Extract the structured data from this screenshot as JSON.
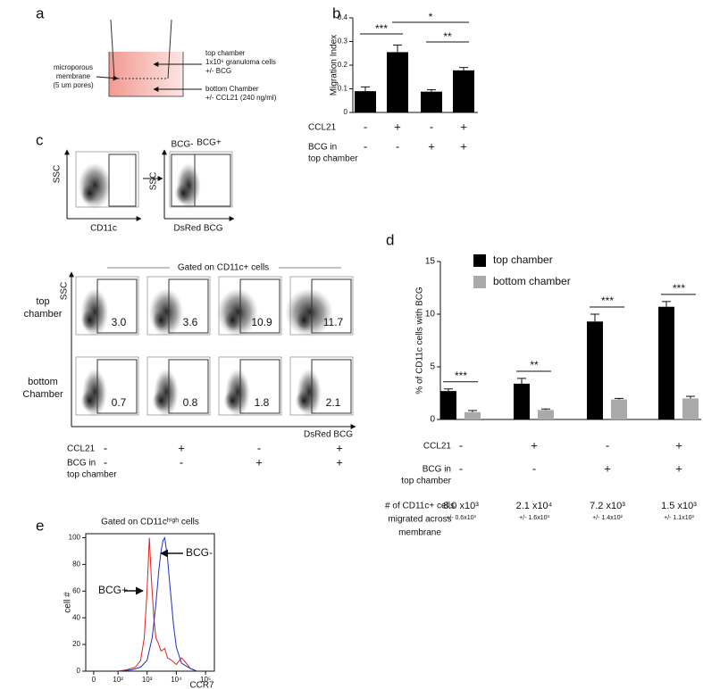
{
  "panels": {
    "a": {
      "letter": "a",
      "membrane": [
        "microporous",
        "membrane",
        "(5 um pores)"
      ],
      "top": [
        "top chamber",
        "1x10⁶ granuloma cells",
        "+/- BCG"
      ],
      "bottom": [
        "bottom Chamber",
        "+/- CCL21 (240 ng/ml)"
      ]
    },
    "c": {
      "letter": "c",
      "ssc": "SSC",
      "cd11c": "CD11c",
      "dsred": "DsRed BCG",
      "bcg_minus": "BCG-",
      "bcg_plus": "BCG+",
      "gated": "Gated on CD11c+ cells",
      "row_labels": [
        [
          "top",
          "chamber"
        ],
        [
          "bottom",
          "Chamber"
        ]
      ],
      "percentages": [
        [
          "3.0",
          "3.6",
          "10.9",
          "11.7"
        ],
        [
          "0.7",
          "0.8",
          "1.8",
          "2.1"
        ]
      ],
      "x_label": "DsRed BCG",
      "rows": [
        {
          "label": [
            "CCL21"
          ],
          "values": [
            "-",
            "+",
            "-",
            "+"
          ]
        },
        {
          "label": [
            "BCG in",
            "top chamber"
          ],
          "values": [
            "-",
            "-",
            "+",
            "+"
          ]
        }
      ]
    }
  },
  "chart_data": [
    {
      "type": "bar",
      "panel": "b",
      "y_label": "Migration Index",
      "color": "#000000",
      "values": [
        0.09,
        0.255,
        0.088,
        0.178
      ],
      "errors": [
        0.018,
        0.03,
        0.008,
        0.012
      ],
      "ylim": [
        0,
        0.4
      ],
      "yticks": [
        0,
        0.1,
        0.2,
        0.3,
        0.4
      ],
      "annotations": [
        "***",
        "*",
        "**"
      ],
      "rows": [
        {
          "label": [
            "CCL21"
          ],
          "values": [
            "-",
            "+",
            "-",
            "+"
          ]
        },
        {
          "label": [
            "BCG in",
            "top chamber"
          ],
          "values": [
            "-",
            "-",
            "+",
            "+"
          ]
        }
      ]
    },
    {
      "type": "grouped-bar",
      "panel": "d",
      "y_label": "% of CD11c cells with BCG",
      "series": [
        {
          "name": "top chamber",
          "color": "#000000",
          "values": [
            2.7,
            3.4,
            9.3,
            10.7
          ],
          "errors": [
            0.2,
            0.5,
            0.7,
            0.5
          ]
        },
        {
          "name": "bottom chamber",
          "color": "#aaaaaa",
          "values": [
            0.7,
            0.9,
            1.9,
            2.0
          ],
          "errors": [
            0.15,
            0.1,
            0.1,
            0.2
          ]
        }
      ],
      "ylim": [
        0,
        15
      ],
      "yticks": [
        0,
        5,
        10,
        15
      ],
      "annotations": [
        "***",
        "**",
        "***",
        "***"
      ],
      "rows": [
        {
          "label": [
            "CCL21"
          ],
          "values": [
            "-",
            "+",
            "-",
            "+"
          ]
        },
        {
          "label": [
            "BCG in",
            "top chamber"
          ],
          "values": [
            "-",
            "-",
            "+",
            "+"
          ]
        }
      ],
      "counts": {
        "label": [
          "# of CD11c+ cells",
          "migrated across",
          "membrane"
        ],
        "values": [
          "8.0 x10³",
          "2.1 x10⁴",
          "7.2 x10³",
          "1.5 x10³"
        ],
        "spread": [
          "+/- 0.6x10³",
          "+/- 1.6x10³",
          "+/- 1.4x10²",
          "+/- 1.1x10³"
        ]
      }
    },
    {
      "type": "line",
      "panel": "e",
      "title": "Gated on CD11cʰⁱᵍʰ cells",
      "y_label": "cell #",
      "x_label": "CCR7",
      "xscale": "asinh",
      "series": [
        {
          "name": "BCG+",
          "color": "#e02020",
          "x": [
            100,
            200,
            400,
            600,
            800,
            1000,
            1200,
            1400,
            1700,
            2000,
            2500,
            3000,
            4000,
            5000,
            7000,
            10000,
            15000,
            20000,
            30000,
            50000
          ],
          "values": [
            0,
            1,
            3,
            8,
            25,
            60,
            100,
            70,
            40,
            25,
            20,
            15,
            17,
            10,
            8,
            5,
            10,
            7,
            2,
            0
          ]
        },
        {
          "name": "BCG-",
          "color": "#2030c0",
          "x": [
            100,
            300,
            600,
            1000,
            1500,
            2000,
            2500,
            3000,
            3500,
            4000,
            5000,
            6000,
            8000,
            10000,
            15000,
            30000,
            50000
          ],
          "values": [
            0,
            1,
            3,
            8,
            25,
            50,
            75,
            90,
            98,
            100,
            85,
            65,
            35,
            18,
            6,
            2,
            0
          ]
        }
      ],
      "xlim": [
        -20,
        200000
      ],
      "xticks": [
        0,
        {
          "value": 100,
          "label": "10²"
        },
        {
          "value": 1000,
          "label": "10³"
        },
        {
          "value": 10000,
          "label": "10⁴"
        },
        {
          "value": 100000,
          "label": "10⁵"
        }
      ],
      "ylim": [
        0,
        103
      ],
      "yticks": [
        0,
        20,
        40,
        60,
        80,
        100
      ]
    }
  ]
}
